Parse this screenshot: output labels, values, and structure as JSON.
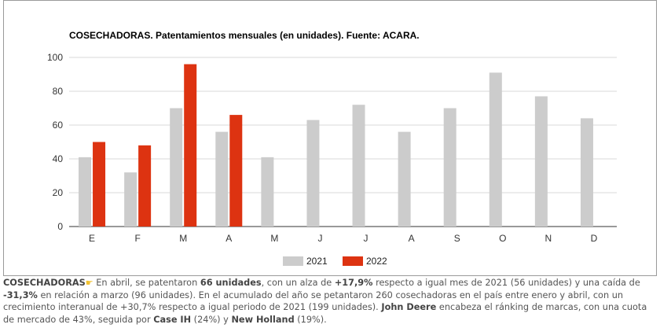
{
  "chart_data": {
    "type": "bar",
    "title": "COSECHADORAS. Patentamientos mensuales (en unidades). Fuente: ACARA.",
    "categories": [
      "E",
      "F",
      "M",
      "A",
      "M",
      "J",
      "J",
      "A",
      "S",
      "O",
      "N",
      "D"
    ],
    "series": [
      {
        "name": "2021",
        "color": "#cccccc",
        "values": [
          41,
          32,
          70,
          56,
          41,
          63,
          72,
          56,
          70,
          91,
          77,
          64
        ]
      },
      {
        "name": "2022",
        "color": "#dd3311",
        "values": [
          50,
          48,
          96,
          66,
          null,
          null,
          null,
          null,
          null,
          null,
          null,
          null
        ]
      }
    ],
    "ylim": [
      0,
      100
    ],
    "yticks": [
      0,
      20,
      40,
      60,
      80,
      100
    ],
    "grid": true,
    "legend": "bottom"
  },
  "caption": {
    "s1": "COSECHADORAS",
    "hand_icon": "pointing-hand-icon",
    "s2": " En abril, se patentaron ",
    "s3": "66 unidades",
    "s4": ", con un alza de ",
    "s5": "+17,9%",
    "s6": " respecto a igual mes de 2021 (56 unidades) y una caída de ",
    "s7": "-31,3%",
    "s8": " en relación a marzo (96 unidades). En el acumulado del año se petantaron 260 cosechadoras en el país entre enero y abril, con un crecimiento interanual de +30,7% respecto a igual periodo de 2021 (199 unidades). ",
    "s9": "John Deere",
    "s10": " encabeza el ránking de marcas, con una cuota de mercado de 43%, seguida por ",
    "s11": "Case IH",
    "s12": " (24%) y ",
    "s13": "New Holland",
    "s14": " (19%)."
  }
}
